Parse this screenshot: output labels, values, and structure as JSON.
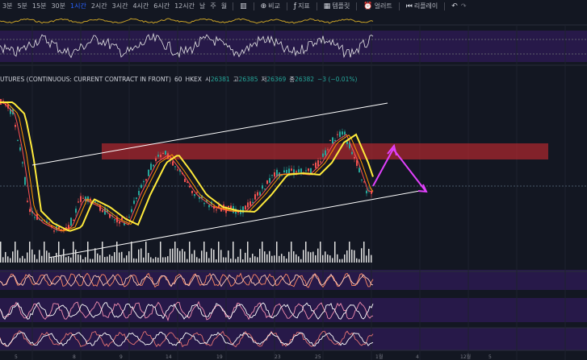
{
  "toolbar": {
    "timeframes": [
      "3분",
      "5분",
      "15분",
      "30분",
      "1시간",
      "2시간",
      "3시간",
      "4시간",
      "6시간",
      "12시간",
      "날",
      "주",
      "월"
    ],
    "active_timeframe": "1시간",
    "compare_label": "비교",
    "indicators_label": "지표",
    "templates_label": "템플릿",
    "alert_label": "얼러트",
    "replay_label": "리플레이"
  },
  "legend": {
    "symbol": "UTURES (CONTINUOUS: CURRENT CONTRACT IN FRONT)",
    "interval": "60",
    "exchange": "HKEX",
    "open_label": "시",
    "open": "26381",
    "high_label": "고",
    "high": "26385",
    "low_label": "저",
    "low": "26369",
    "close_label": "종",
    "close": "26382",
    "change": "−3 (−0.01%)"
  },
  "colors": {
    "background": "#131722",
    "resistance_zone": "#b2282e",
    "forecast_arrow": "#e040fb",
    "ma_yellow": "#ffeb3b",
    "indicator_band": "#2a1a4e",
    "up": "#26a69a",
    "down": "#ef5350"
  },
  "x_axis_ticks": [
    "5",
    "8",
    "9",
    "14",
    "19",
    "23",
    "25",
    "1월",
    "4",
    "12월",
    "5"
  ]
}
